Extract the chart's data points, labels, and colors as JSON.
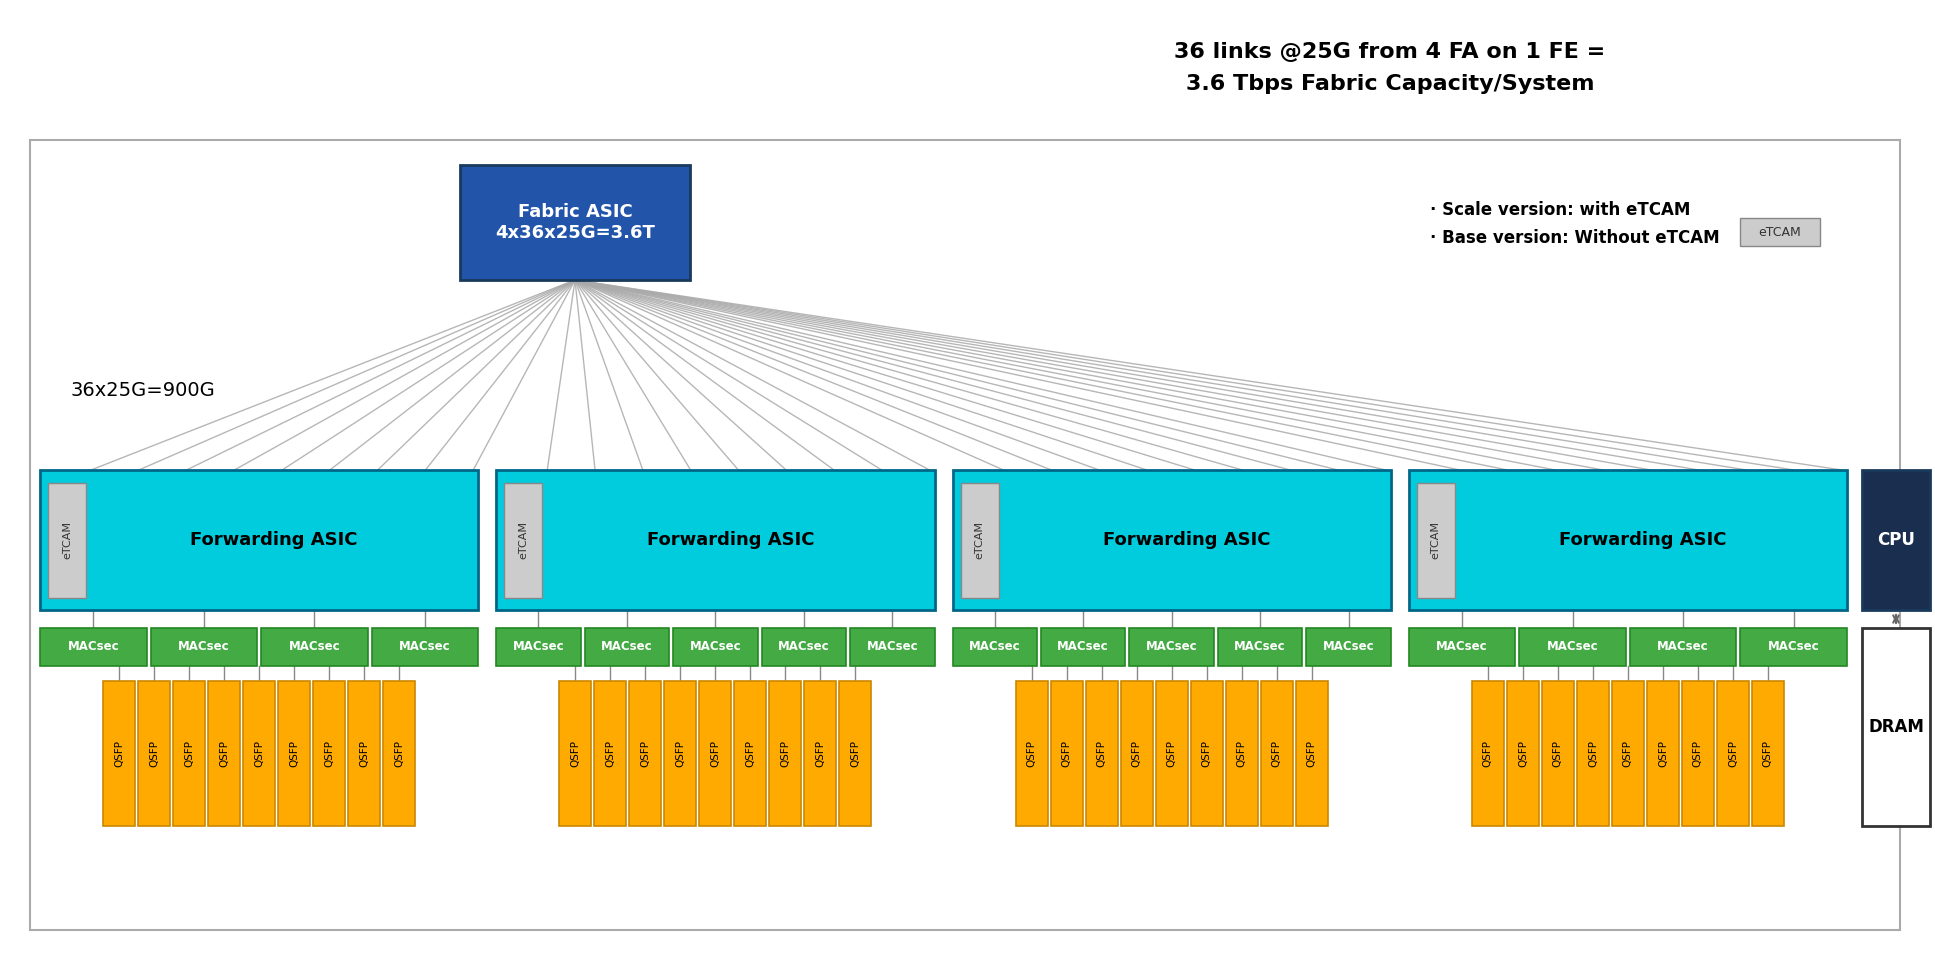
{
  "title_text": "36 links @25G from 4 FA on 1 FE =\n3.6 Tbps Fabric Capacity/System",
  "fabric_asic_text": "Fabric ASIC\n4x36x25G=3.6T",
  "fabric_asic_color": "#2255AA",
  "fabric_asic_text_color": "white",
  "forwarding_asic_color": "#00CCDD",
  "forwarding_asic_border_color": "#006688",
  "etcam_color": "#CCCCCC",
  "etcam_border_color": "#888888",
  "etcam_text_color": "#333333",
  "macsec_color": "#44AA44",
  "macsec_border_color": "#228822",
  "macsec_text_color": "white",
  "qsfp_color": "#FFAA00",
  "qsfp_border_color": "#CC8800",
  "qsfp_text_color": "black",
  "cpu_color": "#1A2F50",
  "cpu_text_color": "white",
  "dram_color": "white",
  "dram_border_color": "#333333",
  "dram_text_color": "black",
  "outer_border_color": "#AAAAAA",
  "bg_color": "white",
  "line_color": "#AAAAAA",
  "annotation_36x25G": "36x25G=900G",
  "scale_text": "· Scale version: with eTCAM",
  "base_text": "· Base version: Without eTCAM",
  "etcam_legend_text": "eTCAM",
  "num_qsfp": 36,
  "num_macsec": 18,
  "num_fa": 4,
  "macsec_per_fa": [
    4,
    5,
    5,
    4
  ],
  "qsfp_per_fa": [
    9,
    9,
    9,
    9
  ]
}
